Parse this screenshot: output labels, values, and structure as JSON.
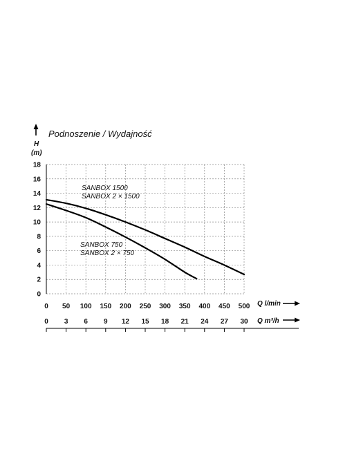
{
  "chart_data": {
    "type": "line",
    "title": "Podnoszenie / Wydajność",
    "ylabel": "H",
    "yunit": "(m)",
    "xlabel": "Q l/min",
    "x2label": "Q m³/h",
    "ylim": [
      0,
      18
    ],
    "xlim": [
      0,
      500
    ],
    "y_ticks": [
      "0",
      "2",
      "4",
      "6",
      "8",
      "10",
      "12",
      "14",
      "16",
      "18"
    ],
    "x_ticks": [
      "0",
      "50",
      "100",
      "150",
      "200",
      "250",
      "300",
      "350",
      "400",
      "450",
      "500"
    ],
    "x2_ticks": [
      "0",
      "3",
      "6",
      "9",
      "12",
      "15",
      "18",
      "21",
      "24",
      "27",
      "30"
    ],
    "grid": true,
    "series": [
      {
        "name": "SANBOX 1500",
        "name2": "SANBOX 2 × 1500",
        "x": [
          0,
          50,
          100,
          150,
          200,
          250,
          300,
          350,
          400,
          450,
          500
        ],
        "y": [
          13.1,
          12.6,
          11.9,
          11.0,
          10.0,
          8.9,
          7.7,
          6.5,
          5.2,
          4.0,
          2.7
        ]
      },
      {
        "name": "SANBOX 750",
        "name2": "SANBOX 2 × 750",
        "x": [
          0,
          50,
          100,
          150,
          200,
          250,
          300,
          350,
          380
        ],
        "y": [
          12.5,
          11.6,
          10.6,
          9.3,
          7.9,
          6.4,
          4.8,
          3.0,
          2.1
        ]
      }
    ]
  }
}
